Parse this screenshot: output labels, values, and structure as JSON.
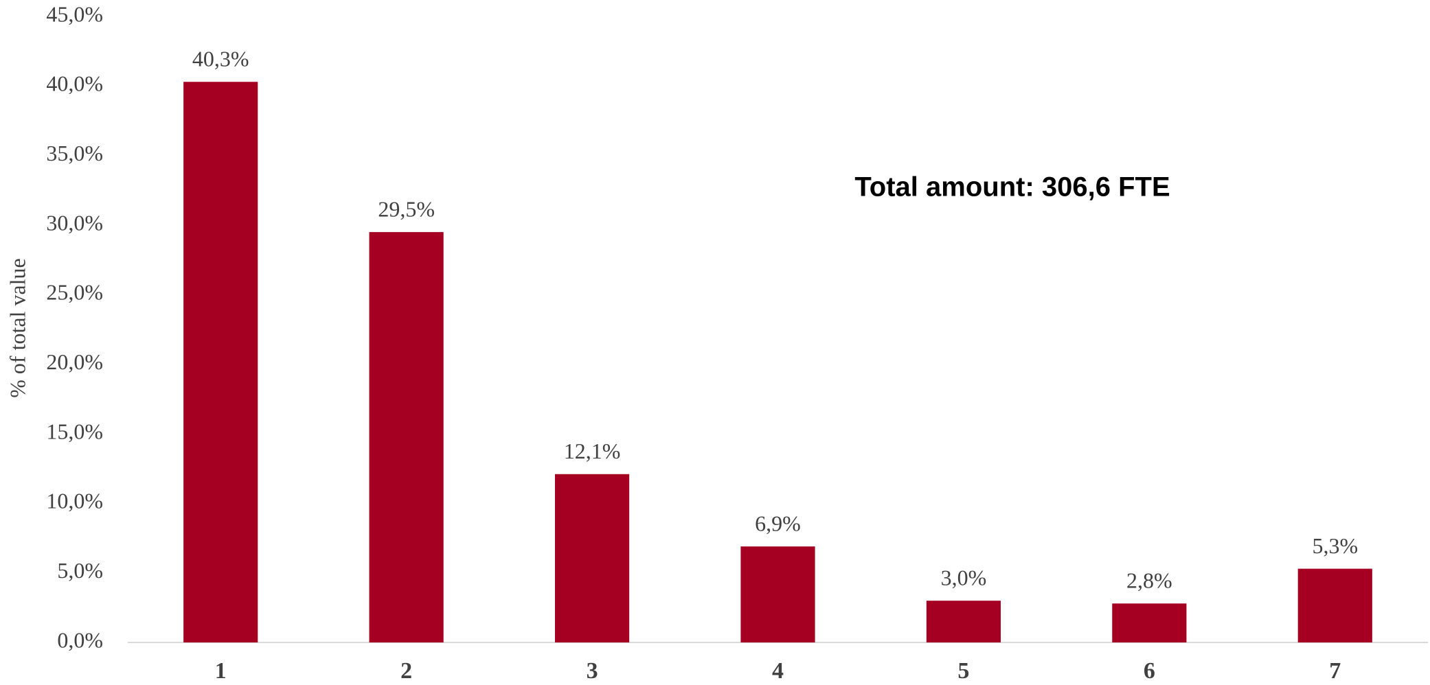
{
  "chart_data": {
    "type": "bar",
    "y_label": "% of total value",
    "annotation": "Total amount: 306,6 FTE",
    "categories": [
      "1",
      "2",
      "3",
      "4",
      "5",
      "6",
      "7"
    ],
    "values": [
      40.3,
      29.5,
      12.1,
      6.9,
      3.0,
      2.8,
      5.3
    ],
    "value_labels": [
      "40,3%",
      "29,5%",
      "12,1%",
      "6,9%",
      "3,0%",
      "2,8%",
      "5,3%"
    ],
    "color": "#a50021",
    "ylim": [
      0,
      45
    ],
    "yticks": [
      {
        "value": 0,
        "label": "0,0%"
      },
      {
        "value": 5,
        "label": "5,0%"
      },
      {
        "value": 10,
        "label": "10,0%"
      },
      {
        "value": 15,
        "label": "15,0%"
      },
      {
        "value": 20,
        "label": "20,0%"
      },
      {
        "value": 25,
        "label": "25,0%"
      },
      {
        "value": 30,
        "label": "30,0%"
      },
      {
        "value": 35,
        "label": "35,0%"
      },
      {
        "value": 40,
        "label": "40,0%"
      },
      {
        "value": 45,
        "label": "45,0%"
      }
    ],
    "grid": false
  }
}
